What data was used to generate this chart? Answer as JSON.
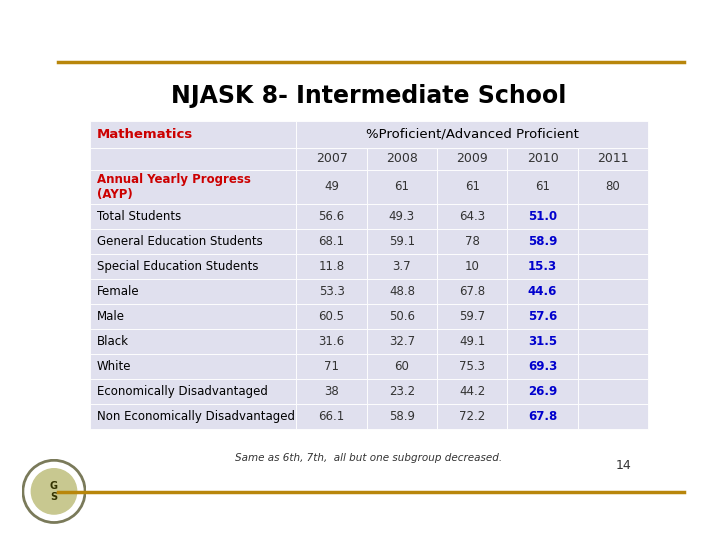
{
  "title": "NJASK 8- Intermediate School",
  "title_color": "#000000",
  "gold_line_color": "#B8860B",
  "background_color": "#FFFFFF",
  "table_bg_color": "#E0E0EE",
  "col_header": "Mathematics",
  "col_header_color": "#CC0000",
  "span_header": "%Proficient/Advanced Proficient",
  "years": [
    "2007",
    "2008",
    "2009",
    "2010",
    "2011"
  ],
  "rows": [
    {
      "label": "Annual Yearly Progress\n(AYP)",
      "label_color": "#CC0000",
      "label_bold": true,
      "values": [
        "49",
        "61",
        "61",
        "61",
        "80"
      ],
      "highlight_col": -1,
      "highlight_color": "#0000CD"
    },
    {
      "label": "Total Students",
      "label_color": "#000000",
      "label_bold": false,
      "values": [
        "56.6",
        "49.3",
        "64.3",
        "51.0",
        ""
      ],
      "highlight_col": 3,
      "highlight_color": "#0000CD"
    },
    {
      "label": "General Education Students",
      "label_color": "#000000",
      "label_bold": false,
      "values": [
        "68.1",
        "59.1",
        "78",
        "58.9",
        ""
      ],
      "highlight_col": 3,
      "highlight_color": "#0000CD"
    },
    {
      "label": "Special Education Students",
      "label_color": "#000000",
      "label_bold": false,
      "values": [
        "11.8",
        "3.7",
        "10",
        "15.3",
        ""
      ],
      "highlight_col": 3,
      "highlight_color": "#0000CD"
    },
    {
      "label": "Female",
      "label_color": "#000000",
      "label_bold": false,
      "values": [
        "53.3",
        "48.8",
        "67.8",
        "44.6",
        ""
      ],
      "highlight_col": 3,
      "highlight_color": "#0000CD"
    },
    {
      "label": "Male",
      "label_color": "#000000",
      "label_bold": false,
      "values": [
        "60.5",
        "50.6",
        "59.7",
        "57.6",
        ""
      ],
      "highlight_col": 3,
      "highlight_color": "#0000CD"
    },
    {
      "label": "Black",
      "label_color": "#000000",
      "label_bold": false,
      "values": [
        "31.6",
        "32.7",
        "49.1",
        "31.5",
        ""
      ],
      "highlight_col": 3,
      "highlight_color": "#0000CD"
    },
    {
      "label": "White",
      "label_color": "#000000",
      "label_bold": false,
      "values": [
        "71",
        "60",
        "75.3",
        "69.3",
        ""
      ],
      "highlight_col": 3,
      "highlight_color": "#0000CD"
    },
    {
      "label": "Economically Disadvantaged",
      "label_color": "#000000",
      "label_bold": false,
      "values": [
        "38",
        "23.2",
        "44.2",
        "26.9",
        ""
      ],
      "highlight_col": 3,
      "highlight_color": "#0000CD"
    },
    {
      "label": "Non Economically Disadvantaged",
      "label_color": "#000000",
      "label_bold": false,
      "values": [
        "66.1",
        "58.9",
        "72.2",
        "67.8",
        ""
      ],
      "highlight_col": 3,
      "highlight_color": "#0000CD"
    }
  ],
  "footnote": "Same as 6th, 7th,  all but one subgroup decreased.",
  "page_number": "14"
}
